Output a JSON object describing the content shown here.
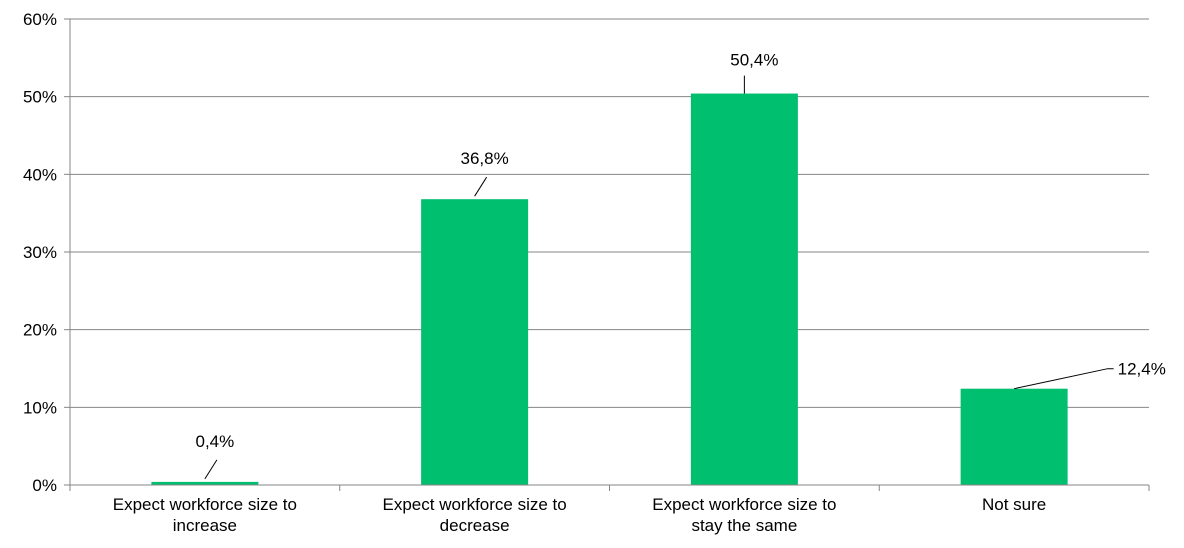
{
  "chart_data": {
    "type": "bar",
    "categories": [
      [
        "Expect workforce size to",
        "increase"
      ],
      [
        "Expect workforce size to",
        "decrease"
      ],
      [
        "Expect workforce size to",
        "stay the same"
      ],
      [
        "Not sure"
      ]
    ],
    "values": [
      0.4,
      36.8,
      50.4,
      12.4
    ],
    "data_labels": [
      "0,4%",
      "36,8%",
      "50,4%",
      "12,4%"
    ],
    "y_ticks": [
      "0%",
      "10%",
      "20%",
      "30%",
      "40%",
      "50%",
      "60%"
    ],
    "ylim": [
      0,
      60
    ],
    "grid": true,
    "legend": "none",
    "colors": {
      "bar": "#00BF6F",
      "grid": "#868686",
      "axis": "#868686",
      "text": "#000000"
    }
  }
}
